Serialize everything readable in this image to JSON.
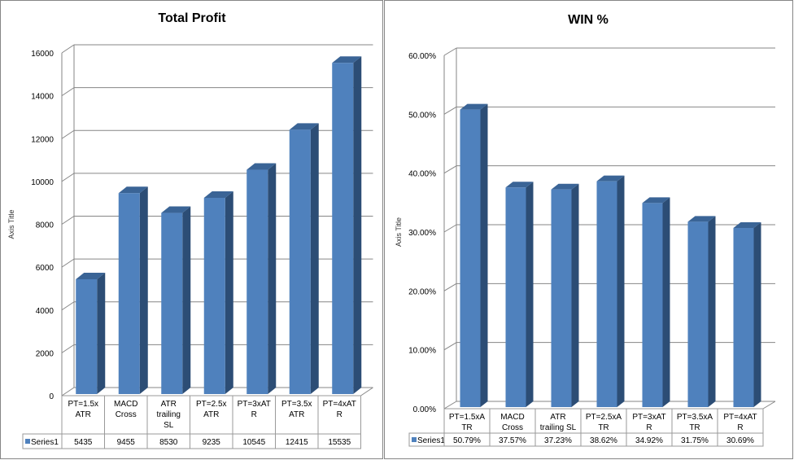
{
  "chart_data": [
    {
      "type": "bar",
      "title": "Total Profit",
      "ylabel": "Axis Title",
      "ylim": [
        0,
        16000
      ],
      "yticks": [
        0,
        2000,
        4000,
        6000,
        8000,
        10000,
        12000,
        14000,
        16000
      ],
      "ytick_labels": [
        "0",
        "2000",
        "4000",
        "6000",
        "8000",
        "10000",
        "12000",
        "14000",
        "16000"
      ],
      "categories": [
        [
          "PT=1.5x",
          "ATR"
        ],
        [
          "MACD",
          "Cross"
        ],
        [
          "ATR",
          "trailing",
          "SL"
        ],
        [
          "PT=2.5x",
          "ATR"
        ],
        [
          "PT=3xAT",
          "R"
        ],
        [
          "PT=3.5x",
          "ATR"
        ],
        [
          "PT=4xAT",
          "R"
        ]
      ],
      "series": [
        {
          "name": "Series1",
          "values": [
            5435,
            9455,
            8530,
            9235,
            10545,
            12415,
            15535
          ],
          "labels": [
            "5435",
            "9455",
            "8530",
            "9235",
            "10545",
            "12415",
            "15535"
          ]
        }
      ],
      "grid": true,
      "legend": "data-table"
    },
    {
      "type": "bar",
      "title": "WIN %",
      "ylabel": "Axis Title",
      "ylim": [
        0,
        60
      ],
      "yticks": [
        0,
        10,
        20,
        30,
        40,
        50,
        60
      ],
      "ytick_labels": [
        "0.00%",
        "10.00%",
        "20.00%",
        "30.00%",
        "40.00%",
        "50.00%",
        "60.00%"
      ],
      "categories": [
        [
          "PT=1.5xA",
          "TR"
        ],
        [
          "MACD",
          "Cross"
        ],
        [
          "ATR",
          "trailing SL"
        ],
        [
          "PT=2.5xA",
          "TR"
        ],
        [
          "PT=3xAT",
          "R"
        ],
        [
          "PT=3.5xA",
          "TR"
        ],
        [
          "PT=4xAT",
          "R"
        ]
      ],
      "series": [
        {
          "name": "Series1",
          "values": [
            50.79,
            37.57,
            37.23,
            38.62,
            34.92,
            31.75,
            30.69
          ],
          "labels": [
            "50.79%",
            "37.57%",
            "37.23%",
            "38.62%",
            "34.92%",
            "31.75%",
            "30.69%"
          ]
        }
      ],
      "grid": true,
      "legend": "data-table"
    }
  ],
  "colors": {
    "front": "#4f81bd",
    "side": "#2c4d75",
    "top": "#3a6496",
    "grid": "#868686"
  }
}
